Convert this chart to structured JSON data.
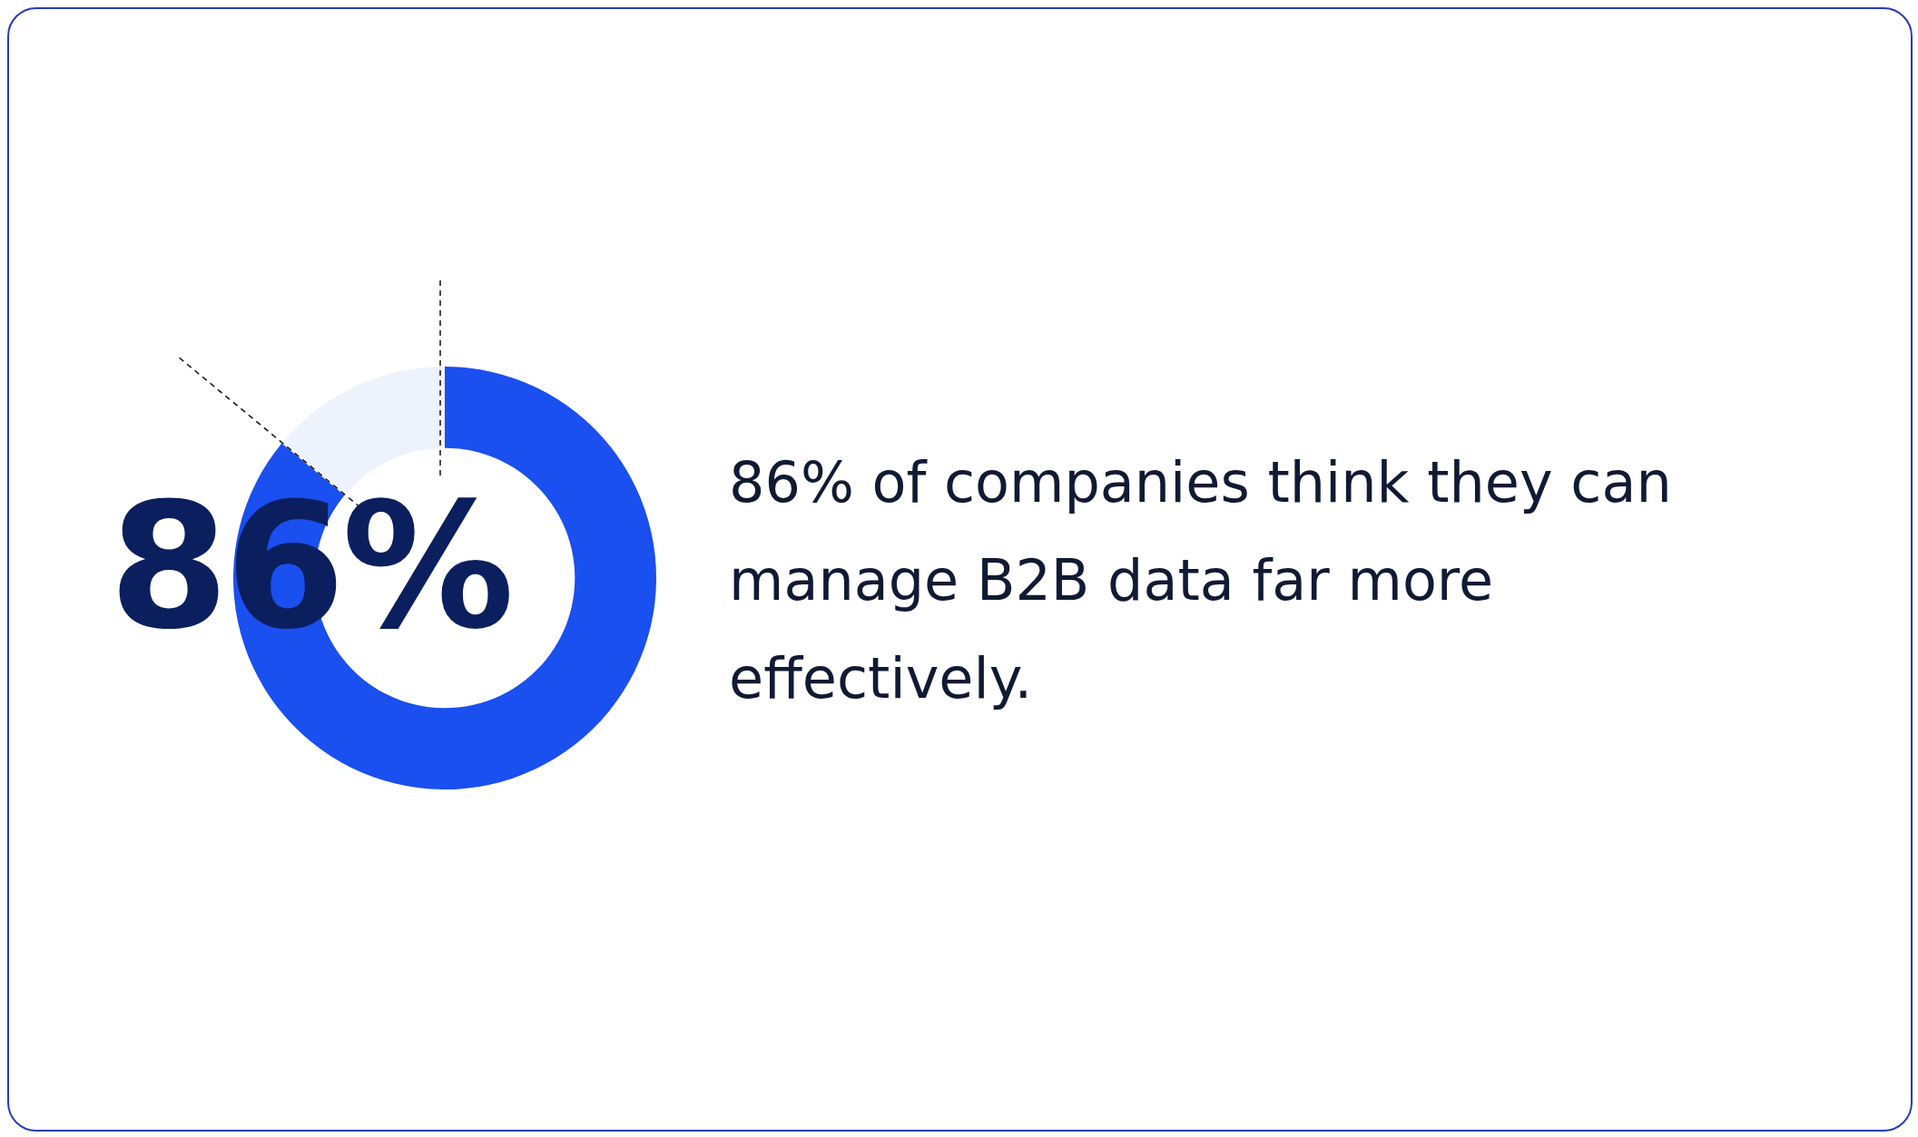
{
  "chart_data": {
    "type": "donut",
    "categories": [
      null,
      null
    ],
    "values": [
      86,
      14
    ],
    "colors": [
      "#1a4ff0",
      "#eef2fd"
    ],
    "value_labels": [
      "86%",
      null
    ],
    "annotations": [
      "86% of companies think they can manage B2B data far more effectively."
    ]
  }
}
